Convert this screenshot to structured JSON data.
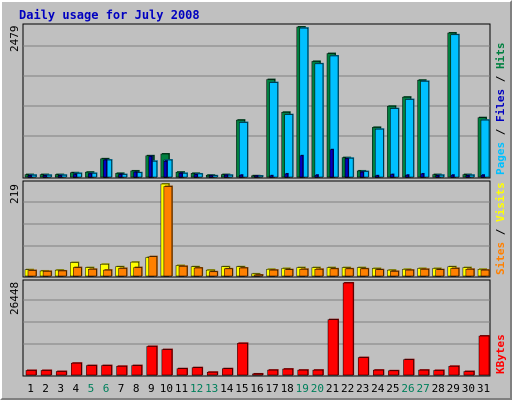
{
  "title": "Daily usage for July 2008",
  "colors": {
    "hits": "#008040",
    "files": "#0000c0",
    "pages": "#00c0ff",
    "visits": "#ffff00",
    "sites": "#ff8000",
    "kbytes": "#ff0000",
    "weekend_label": "#00805c",
    "weekday_label": "#000000"
  },
  "legends": {
    "top": [
      {
        "text": "Pages",
        "color": "#00c0ff"
      },
      {
        "text": " / ",
        "color": "#000000"
      },
      {
        "text": "Files",
        "color": "#0000c0"
      },
      {
        "text": " / ",
        "color": "#000000"
      },
      {
        "text": "Hits",
        "color": "#008040"
      }
    ],
    "middle": [
      {
        "text": "Sites",
        "color": "#ff8000"
      },
      {
        "text": " / ",
        "color": "#000000"
      },
      {
        "text": "Visits",
        "color": "#ffff00"
      }
    ],
    "bottom": [
      {
        "text": "KBytes",
        "color": "#ff0000"
      }
    ]
  },
  "chart_data": [
    {
      "type": "bar",
      "name": "hits-files-pages",
      "y_max_label": "2479",
      "ylim": [
        0,
        2479
      ],
      "categories": [
        "1",
        "2",
        "3",
        "4",
        "5",
        "6",
        "7",
        "8",
        "9",
        "10",
        "11",
        "12",
        "13",
        "14",
        "15",
        "16",
        "17",
        "18",
        "19",
        "20",
        "21",
        "22",
        "23",
        "24",
        "25",
        "26",
        "27",
        "28",
        "29",
        "30",
        "31"
      ],
      "series": [
        {
          "name": "Hits",
          "values": [
            40,
            40,
            40,
            70,
            80,
            300,
            60,
            100,
            350,
            380,
            80,
            60,
            30,
            40,
            940,
            20,
            1610,
            1070,
            2479,
            1910,
            2040,
            320,
            100,
            820,
            1170,
            1320,
            1600,
            40,
            2380,
            40,
            980
          ]
        },
        {
          "name": "Files",
          "values": [
            20,
            20,
            20,
            40,
            50,
            280,
            40,
            80,
            340,
            260,
            60,
            40,
            20,
            30,
            30,
            10,
            20,
            50,
            350,
            30,
            450,
            300,
            80,
            20,
            40,
            30,
            50,
            20,
            30,
            20,
            30
          ]
        },
        {
          "name": "Pages",
          "values": [
            30,
            30,
            30,
            60,
            60,
            280,
            40,
            70,
            260,
            280,
            60,
            50,
            20,
            30,
            900,
            10,
            1560,
            1030,
            2460,
            1870,
            2000,
            310,
            90,
            790,
            1130,
            1280,
            1580,
            30,
            2350,
            30,
            940
          ]
        }
      ]
    },
    {
      "type": "bar",
      "name": "visits-sites",
      "y_max_label": "219",
      "ylim": [
        0,
        219
      ],
      "categories": [
        "1",
        "2",
        "3",
        "4",
        "5",
        "6",
        "7",
        "8",
        "9",
        "10",
        "11",
        "12",
        "13",
        "14",
        "15",
        "16",
        "17",
        "18",
        "19",
        "20",
        "21",
        "22",
        "23",
        "24",
        "25",
        "26",
        "27",
        "28",
        "29",
        "30",
        "31"
      ],
      "series": [
        {
          "name": "Visits",
          "values": [
            15,
            12,
            14,
            32,
            20,
            28,
            22,
            33,
            44,
            219,
            25,
            22,
            14,
            22,
            22,
            5,
            16,
            18,
            20,
            20,
            20,
            20,
            20,
            18,
            14,
            16,
            18,
            18,
            22,
            20,
            16
          ]
        },
        {
          "name": "Sites",
          "values": [
            13,
            11,
            12,
            20,
            16,
            14,
            18,
            20,
            46,
            213,
            23,
            19,
            10,
            17,
            19,
            2,
            14,
            15,
            16,
            16,
            17,
            17,
            17,
            15,
            11,
            14,
            16,
            15,
            18,
            16,
            14
          ]
        }
      ]
    },
    {
      "type": "bar",
      "name": "kbytes",
      "y_max_label": "26448",
      "ylim": [
        0,
        26448
      ],
      "categories": [
        "1",
        "2",
        "3",
        "4",
        "5",
        "6",
        "7",
        "8",
        "9",
        "10",
        "11",
        "12",
        "13",
        "14",
        "15",
        "16",
        "17",
        "18",
        "19",
        "20",
        "21",
        "22",
        "23",
        "24",
        "25",
        "26",
        "27",
        "28",
        "29",
        "30",
        "31"
      ],
      "series": [
        {
          "name": "KBytes",
          "values": [
            1300,
            1300,
            1000,
            3400,
            2700,
            2700,
            2500,
            2700,
            8200,
            7300,
            1800,
            2100,
            800,
            1800,
            9100,
            300,
            1400,
            1700,
            1400,
            1400,
            15900,
            26448,
            5000,
            1400,
            1200,
            4400,
            1400,
            1300,
            2500,
            1000,
            11200
          ]
        }
      ]
    }
  ],
  "weekend_days": [
    "5",
    "6",
    "12",
    "13",
    "19",
    "20",
    "26",
    "27"
  ]
}
